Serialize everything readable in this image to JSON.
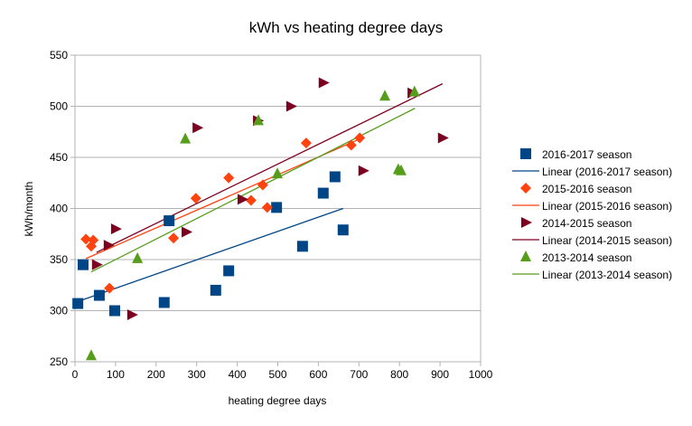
{
  "chart_data": {
    "type": "scatter",
    "title": "kWh vs heating degree days",
    "xlabel": "heating degree days",
    "ylabel": "kWh/month",
    "xlim": [
      0,
      1000
    ],
    "ylim": [
      250,
      550
    ],
    "xticks": [
      0,
      100,
      200,
      300,
      400,
      500,
      600,
      700,
      800,
      900,
      1000
    ],
    "yticks": [
      250,
      300,
      350,
      400,
      450,
      500,
      550
    ],
    "grid": "horizontal",
    "legend_position": "right",
    "series": [
      {
        "name": "2016-2017 season",
        "marker": "square",
        "color": "#004586",
        "trend_name": "Linear (2016-2017 season)",
        "trend": [
          [
            7,
            309
          ],
          [
            661,
            400
          ]
        ],
        "points": [
          [
            7,
            307
          ],
          [
            20,
            345
          ],
          [
            60,
            315
          ],
          [
            98,
            300
          ],
          [
            220,
            308
          ],
          [
            232,
            388
          ],
          [
            347,
            320
          ],
          [
            379,
            339
          ],
          [
            497,
            401
          ],
          [
            561,
            363
          ],
          [
            612,
            415
          ],
          [
            641,
            431
          ],
          [
            661,
            379
          ]
        ]
      },
      {
        "name": "2015-2016 season",
        "marker": "diamond",
        "color": "#ff420e",
        "trend_name": "Linear (2015-2016 season)",
        "trend": [
          [
            27,
            351
          ],
          [
            702,
            468
          ]
        ],
        "points": [
          [
            27,
            370
          ],
          [
            45,
            369
          ],
          [
            40,
            363
          ],
          [
            85,
            322
          ],
          [
            243,
            371
          ],
          [
            298,
            410
          ],
          [
            379,
            430
          ],
          [
            434,
            408
          ],
          [
            463,
            423
          ],
          [
            474,
            401
          ],
          [
            570,
            464
          ],
          [
            681,
            462
          ],
          [
            702,
            469
          ]
        ]
      },
      {
        "name": "2014-2015 season",
        "marker": "triangle-right",
        "color": "#7e0021",
        "trend_name": "Linear (2014-2015 season)",
        "trend": [
          [
            53,
            357
          ],
          [
            906,
            522
          ]
        ],
        "points": [
          [
            53,
            345
          ],
          [
            82,
            364
          ],
          [
            100,
            380
          ],
          [
            140,
            296
          ],
          [
            274,
            377
          ],
          [
            301,
            479
          ],
          [
            412,
            409
          ],
          [
            450,
            486
          ],
          [
            532,
            500
          ],
          [
            612,
            523
          ],
          [
            710,
            437
          ],
          [
            831,
            513
          ],
          [
            906,
            469
          ]
        ]
      },
      {
        "name": "2013-2014 season",
        "marker": "triangle-up",
        "color": "#579d1c",
        "trend_name": "Linear (2013-2014 season)",
        "trend": [
          [
            40,
            338
          ],
          [
            838,
            498
          ]
        ],
        "points": [
          [
            40,
            256
          ],
          [
            154,
            351
          ],
          [
            272,
            468
          ],
          [
            452,
            486
          ],
          [
            499,
            434
          ],
          [
            764,
            510
          ],
          [
            797,
            438
          ],
          [
            804,
            437
          ],
          [
            837,
            514
          ]
        ]
      }
    ]
  }
}
